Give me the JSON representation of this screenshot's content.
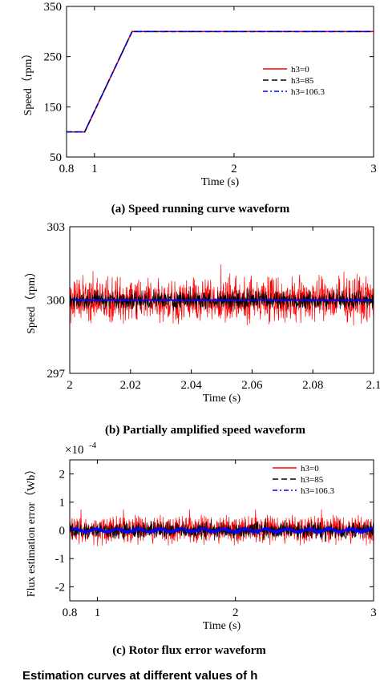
{
  "chart_data": [
    {
      "type": "line",
      "caption": "(a) Speed running curve waveform",
      "xlabel": "Time (s)",
      "ylabel": "Speed（rpm）",
      "xlim": [
        0.8,
        3
      ],
      "ylim": [
        50,
        350
      ],
      "xticks": [
        {
          "v": 0.8,
          "t": "0.8"
        },
        {
          "v": 1,
          "t": "1"
        },
        {
          "v": 2,
          "t": "2"
        },
        {
          "v": 3,
          "t": "3"
        }
      ],
      "yticks": [
        {
          "v": 50,
          "t": "50"
        },
        {
          "v": 150,
          "t": "150"
        },
        {
          "v": 250,
          "t": "250"
        },
        {
          "v": 350,
          "t": "350"
        }
      ],
      "legend_position": "right",
      "series": [
        {
          "name": "h3=0",
          "color": "#ff0000",
          "dash": "solid",
          "x": [
            0.8,
            0.93,
            1.27,
            3
          ],
          "y": [
            100,
            100,
            300,
            300
          ]
        },
        {
          "name": "h3=85",
          "color": "#000000",
          "dash": "dashed",
          "x": [
            0.8,
            0.93,
            1.27,
            3
          ],
          "y": [
            100,
            100,
            300,
            300
          ]
        },
        {
          "name": "h3=106.3",
          "color": "#0000ff",
          "dash": "dashdot",
          "x": [
            0.8,
            0.93,
            1.27,
            3
          ],
          "y": [
            100,
            100,
            300,
            300
          ]
        }
      ]
    },
    {
      "type": "line",
      "caption": "(b) Partially amplified speed waveform",
      "xlabel": "Time (s)",
      "ylabel": "Speed（rpm）",
      "xlim": [
        2,
        2.1
      ],
      "ylim": [
        297,
        303
      ],
      "xticks": [
        {
          "v": 2,
          "t": "2"
        },
        {
          "v": 2.02,
          "t": "2.02"
        },
        {
          "v": 2.04,
          "t": "2.04"
        },
        {
          "v": 2.06,
          "t": "2.06"
        },
        {
          "v": 2.08,
          "t": "2.08"
        },
        {
          "v": 2.1,
          "t": "2.1"
        }
      ],
      "yticks": [
        {
          "v": 297,
          "t": "297"
        },
        {
          "v": 300,
          "t": "300"
        },
        {
          "v": 303,
          "t": "303"
        }
      ],
      "series": [
        {
          "color": "#ff0000",
          "noise_amplitude": 1.1,
          "mean": 300
        },
        {
          "color": "#000000",
          "noise_amplitude": 0.45,
          "mean": 300
        },
        {
          "color": "#0000ff",
          "noise_amplitude": 0.03,
          "mean": 300
        }
      ]
    },
    {
      "type": "line",
      "caption": "(c) Rotor flux error waveform",
      "xlabel": "Time (s)",
      "ylabel": "Flux estimation error（Wb）",
      "y_exponent": "×10",
      "y_exponent_power": "-4",
      "xlim": [
        0.8,
        3
      ],
      "ylim": [
        -2.5,
        2.5
      ],
      "xticks": [
        {
          "v": 0.8,
          "t": "0.8"
        },
        {
          "v": 1,
          "t": "1"
        },
        {
          "v": 2,
          "t": "2"
        },
        {
          "v": 3,
          "t": "3"
        }
      ],
      "yticks": [
        {
          "v": -2,
          "t": "-2"
        },
        {
          "v": -1,
          "t": "-1"
        },
        {
          "v": 0,
          "t": "0"
        },
        {
          "v": 1,
          "t": "1"
        },
        {
          "v": 2,
          "t": "2"
        }
      ],
      "legend_position": "top-right",
      "series": [
        {
          "name": "h3=0",
          "color": "#ff0000",
          "dash": "solid",
          "noise_amplitude": 0.6,
          "mean": 0
        },
        {
          "name": "h3=85",
          "color": "#000000",
          "dash": "dashed",
          "noise_amplitude": 0.35,
          "mean": 0
        },
        {
          "name": "h3=106.3",
          "color": "#0000ff",
          "dash": "dashdot",
          "noise_amplitude": 0.08,
          "mean": 0
        }
      ]
    }
  ],
  "figure_caption": "Estimation curves at different values of h"
}
